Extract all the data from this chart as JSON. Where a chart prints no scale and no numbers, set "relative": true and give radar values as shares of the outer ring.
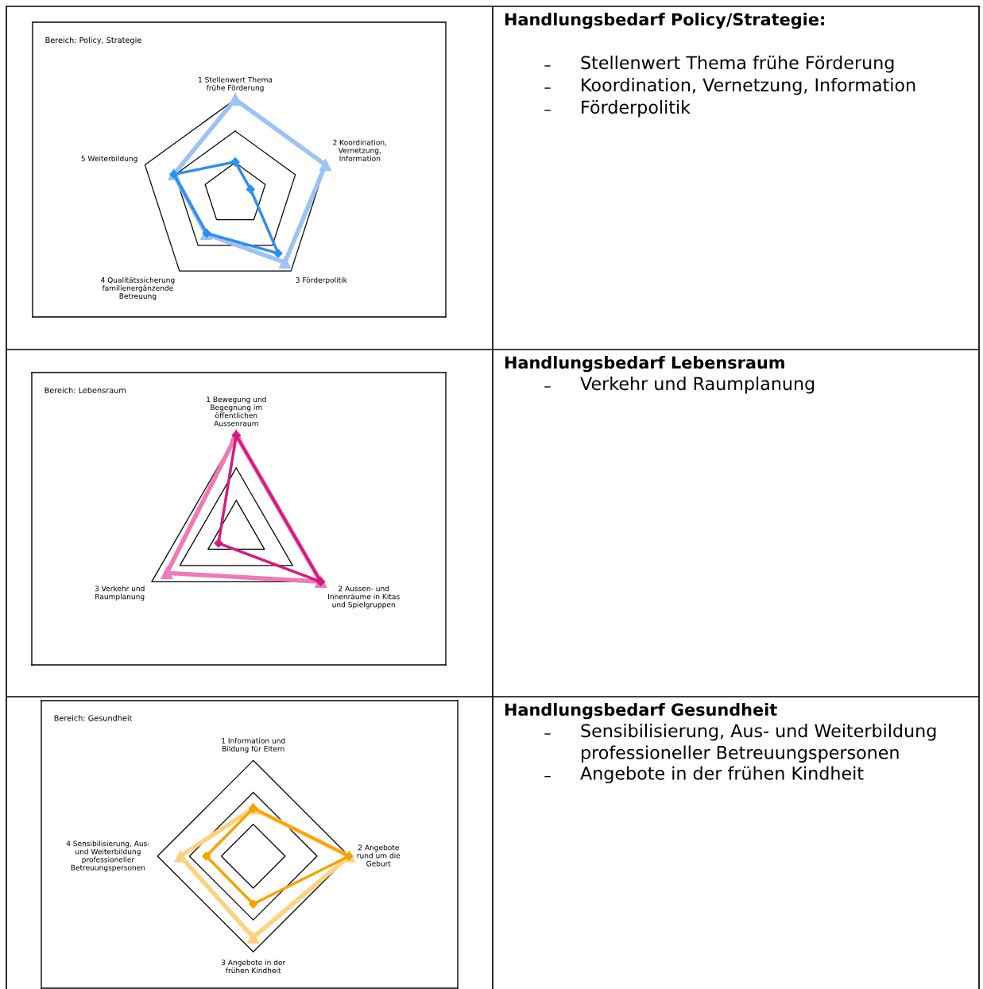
{
  "chart_data": [
    {
      "type": "radar",
      "title": "Bereich: Policy, Strategie",
      "relative": true,
      "grid": true,
      "categories": [
        "1 Stellenwert Thema\nfrühe Förderung",
        "2 Koordination,\nVernetzung,\nInformation",
        "3 Förderpolitik",
        "4 Qualitätssicherung\nfamilienergänzende\nBetreuung",
        "5 Weiterbildung"
      ],
      "series": [
        {
          "color": "#9dc3f5",
          "marker": "triangle",
          "values": [
            1.0,
            1.0,
            0.89,
            0.52,
            0.68
          ]
        },
        {
          "color": "#2f8ef0",
          "marker": "diamond",
          "values": [
            0.34,
            0.17,
            0.77,
            0.51,
            0.68
          ]
        }
      ]
    },
    {
      "type": "other",
      "title": "Handlungsbedarf Policy/Strategie:",
      "annotations": [
        "Stellenwert Thema frühe Förderung",
        "Koordination, Vernetzung, Information",
        "Förderpolitik"
      ]
    },
    {
      "type": "radar",
      "title": "Bereich: Lebensraum",
      "relative": true,
      "grid": true,
      "categories": [
        "1 Bewegung und\nBegegnung im\nöffentlichen\nAussenraum",
        "2 Aussen- und\nInnenräume in Kitas\nund Spielgruppen",
        "3 Verkehr und\nRaumplanung"
      ],
      "series": [
        {
          "color": "#ee7ab8",
          "marker": "triangle",
          "values": [
            1.0,
            1.0,
            0.82
          ]
        },
        {
          "color": "#d6197e",
          "marker": "diamond",
          "values": [
            1.0,
            1.0,
            0.21
          ]
        }
      ]
    },
    {
      "type": "other",
      "title": "Handlungsbedarf Lebensraum",
      "annotations": [
        "Verkehr und Raumplanung"
      ]
    },
    {
      "type": "radar",
      "title": "Bereich: Gesundheit",
      "relative": true,
      "grid": true,
      "categories": [
        "1 Information und\nBildung für Eltern",
        "2 Angebote\nrund um die\nGeburt",
        "3 Angebote in der\nfrühen Kindheit",
        "4 Sensibilisierung, Aus-\nund Weiterbildung\nprofessioneller\nBetreuungspersonen"
      ],
      "series": [
        {
          "color": "#ffd27f",
          "marker": "triangle",
          "values": [
            0.5,
            1.0,
            0.85,
            0.76
          ]
        },
        {
          "color": "#f5a300",
          "marker": "diamond",
          "values": [
            0.5,
            1.0,
            0.5,
            0.49
          ]
        }
      ]
    },
    {
      "type": "other",
      "title": "Handlungsbedarf Gesundheit",
      "annotations": [
        "Sensibilisierung, Aus- und Weiterbildung professioneller Betreuungspersonen",
        "Angebote in der frühen Kindheit"
      ]
    }
  ]
}
